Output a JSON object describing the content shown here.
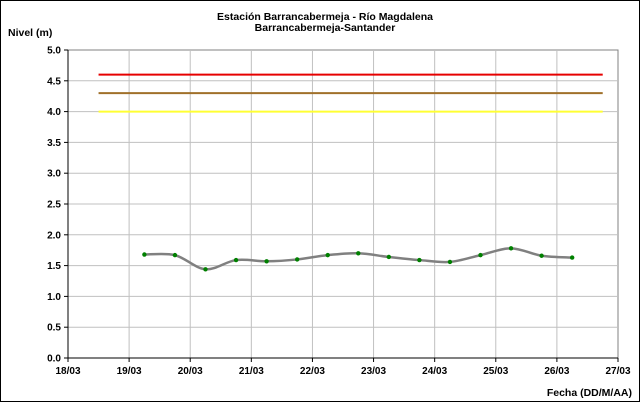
{
  "chart_data": {
    "type": "line",
    "title": "Estación Barrancabermeja - Río Magdalena",
    "subtitle": "Barrancabermeja-Santander",
    "ylabel": "Nivel (m)",
    "xlabel": "Fecha (DD/M/AA)",
    "ylim": [
      0,
      5
    ],
    "y_ticks": [
      "0.0",
      "0.5",
      "1.0",
      "1.5",
      "2.0",
      "2.5",
      "3.0",
      "3.5",
      "4.0",
      "4.5",
      "5.0"
    ],
    "x_ticks": [
      "18/03",
      "19/03",
      "20/03",
      "21/03",
      "22/03",
      "23/03",
      "24/03",
      "25/03",
      "26/03",
      "27/03"
    ],
    "grid": true,
    "thresholds": [
      {
        "value": 4.6,
        "color": "#e60000"
      },
      {
        "value": 4.3,
        "color": "#a0702a"
      },
      {
        "value": 4.0,
        "color": "#ffff33"
      }
    ],
    "threshold_x_range": [
      "18/03 12:00",
      "26/03 18:00"
    ],
    "series": [
      {
        "color": "#808080",
        "marker_color": "#008000",
        "x": [
          "19/03 06:00",
          "19/03 18:00",
          "20/03 06:00",
          "20/03 18:00",
          "21/03 06:00",
          "21/03 18:00",
          "22/03 06:00",
          "22/03 18:00",
          "23/03 06:00",
          "23/03 18:00",
          "24/03 06:00",
          "24/03 18:00",
          "25/03 06:00",
          "25/03 18:00",
          "26/03 06:00"
        ],
        "values": [
          1.68,
          1.67,
          1.44,
          1.59,
          1.57,
          1.6,
          1.67,
          1.7,
          1.64,
          1.59,
          1.56,
          1.67,
          1.78,
          1.66,
          1.63
        ]
      }
    ]
  }
}
